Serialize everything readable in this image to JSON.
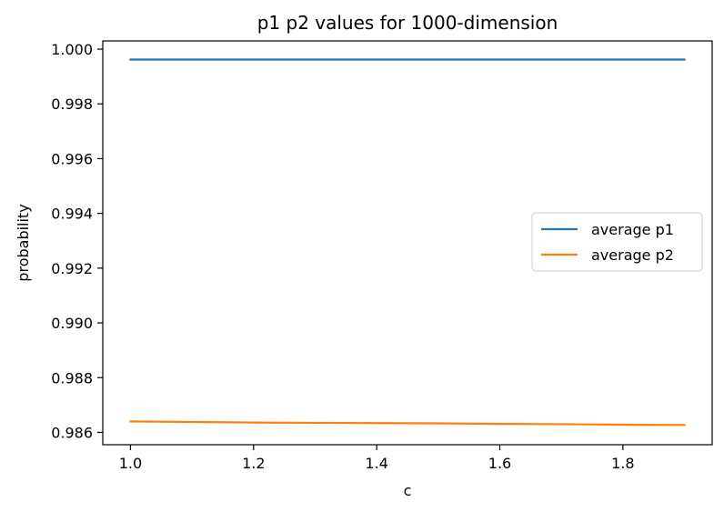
{
  "chart_data": {
    "type": "line",
    "title": "p1 p2 values for 1000-dimension",
    "xlabel": "c",
    "ylabel": "probability",
    "xlim": [
      0.955,
      1.945
    ],
    "ylim": [
      0.98555,
      1.0003
    ],
    "x_ticks": [
      1.0,
      1.2,
      1.4,
      1.6,
      1.8
    ],
    "x_tick_labels": [
      "1.0",
      "1.2",
      "1.4",
      "1.6",
      "1.8"
    ],
    "y_ticks": [
      0.986,
      0.988,
      0.99,
      0.992,
      0.994,
      0.996,
      0.998,
      1.0
    ],
    "y_tick_labels": [
      "0.986",
      "0.988",
      "0.990",
      "0.992",
      "0.994",
      "0.996",
      "0.998",
      "1.000"
    ],
    "x": [
      1.0,
      1.1,
      1.2,
      1.3,
      1.4,
      1.5,
      1.6,
      1.7,
      1.8,
      1.9
    ],
    "series": [
      {
        "name": "average p1",
        "color": "#1f77b4",
        "values": [
          0.99962,
          0.99962,
          0.99962,
          0.99962,
          0.99962,
          0.99962,
          0.99962,
          0.99962,
          0.99962,
          0.99962
        ]
      },
      {
        "name": "average p2",
        "color": "#ff7f0e",
        "values": [
          0.9864,
          0.98638,
          0.98636,
          0.98635,
          0.98634,
          0.98633,
          0.98631,
          0.9863,
          0.98628,
          0.98627
        ]
      }
    ],
    "legend_position": "center-right",
    "grid": false
  }
}
